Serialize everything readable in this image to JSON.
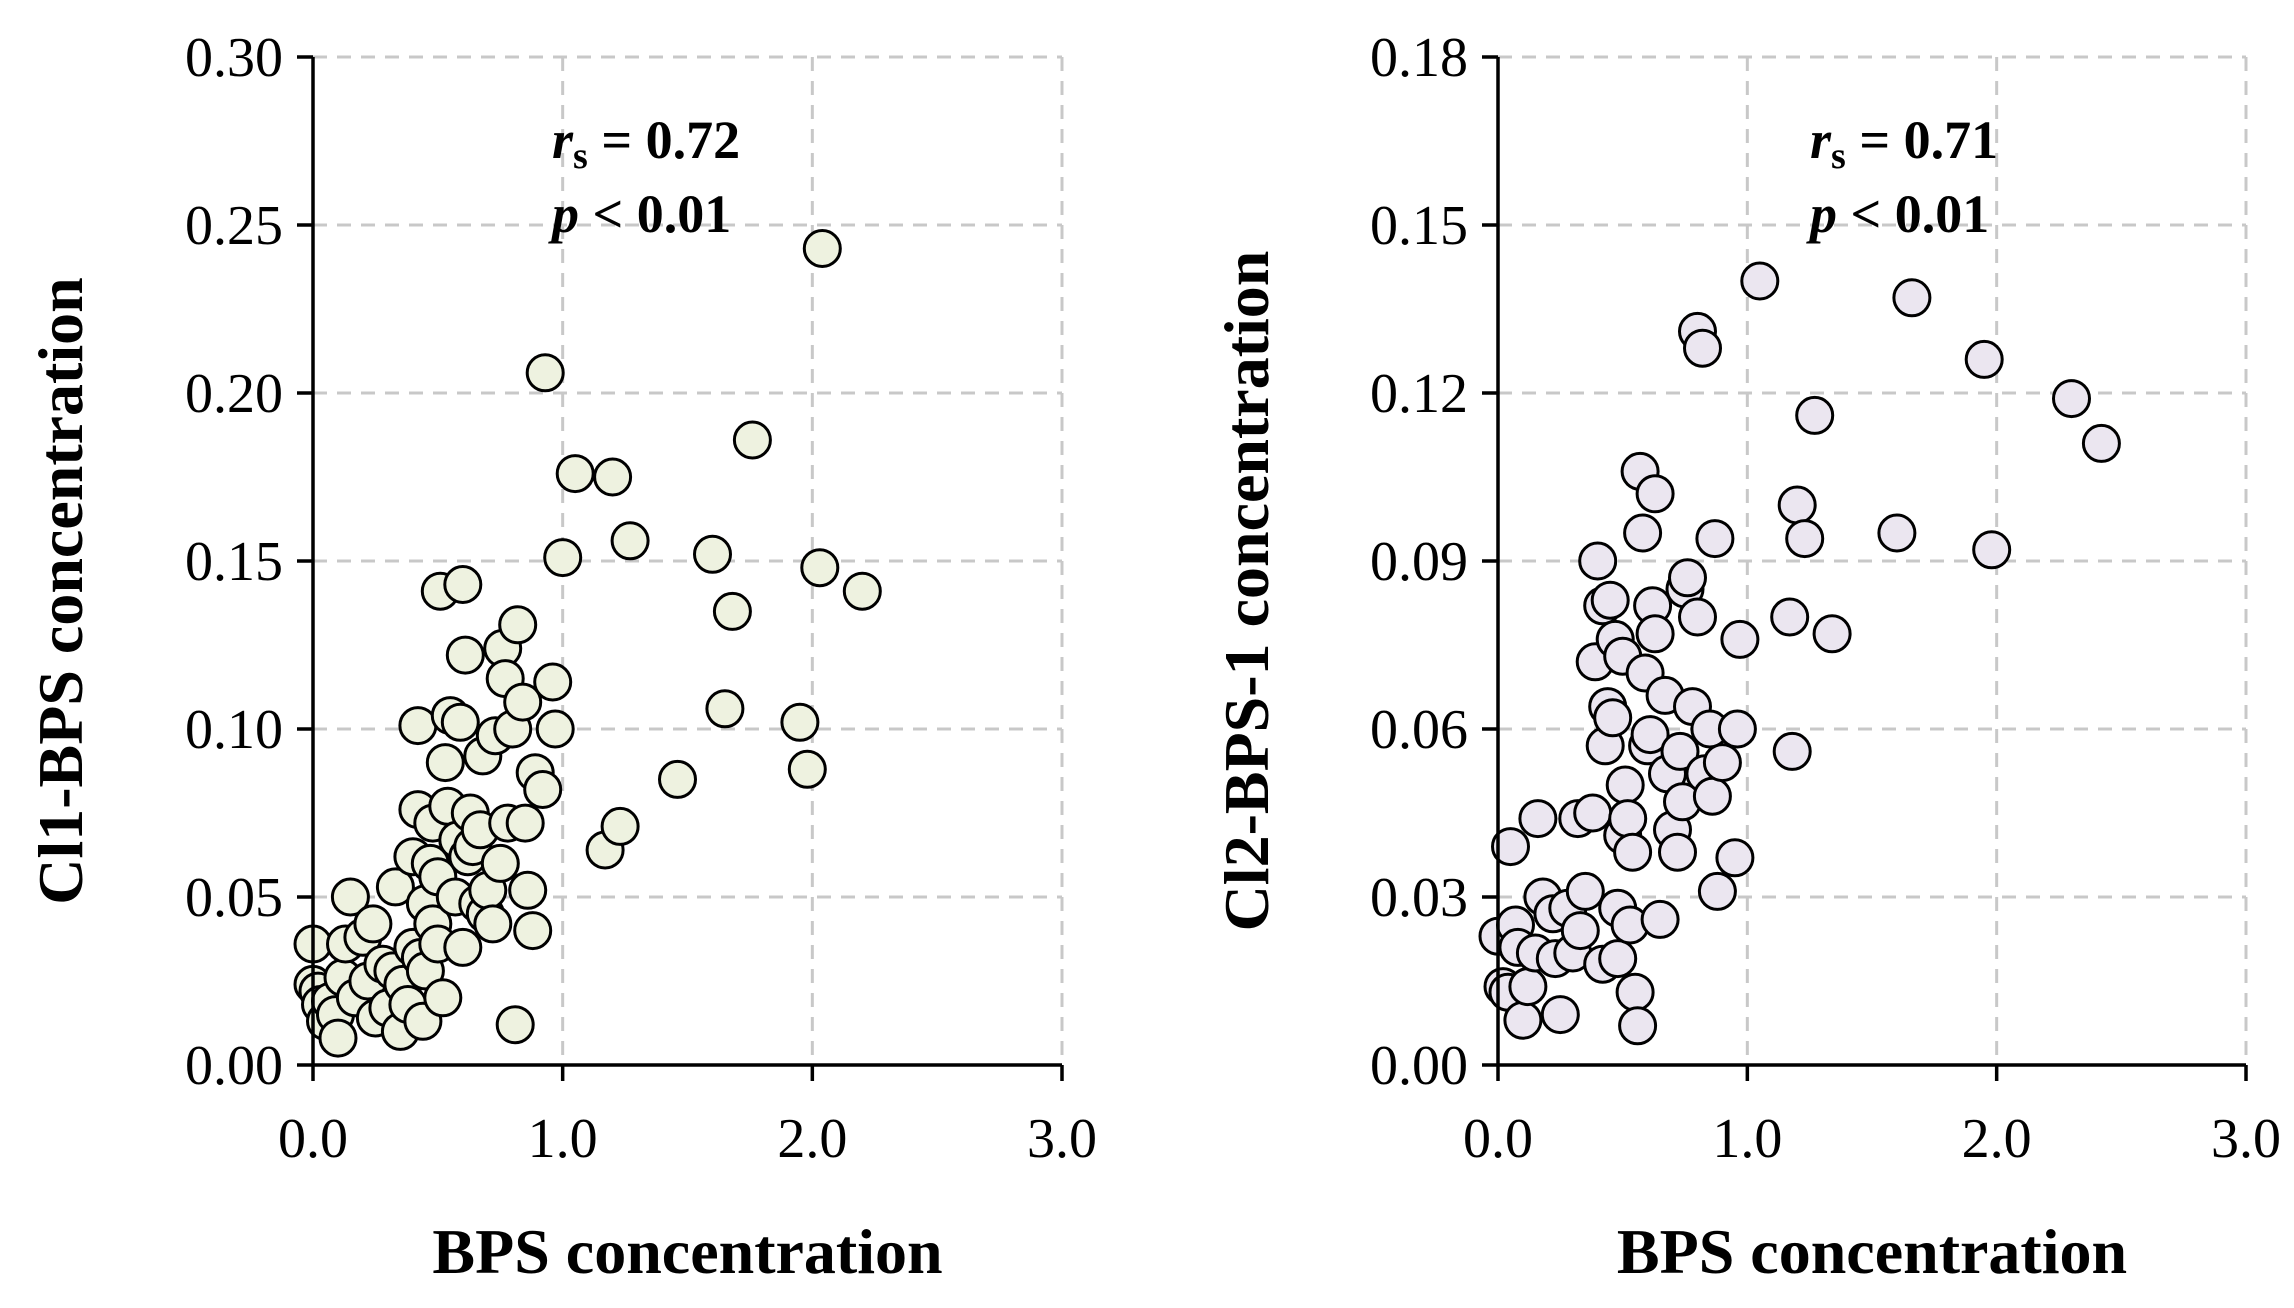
{
  "chart_data": [
    {
      "type": "scatter",
      "xlabel": "BPS concentration",
      "ylabel": "Cl1-BPS concentration",
      "xlim": [
        0,
        3.0
      ],
      "ylim": [
        0,
        0.3
      ],
      "x_ticks": [
        "0.0",
        "1.0",
        "2.0",
        "3.0"
      ],
      "y_ticks": [
        "0.00",
        "0.05",
        "0.10",
        "0.15",
        "0.20",
        "0.25",
        "0.30"
      ],
      "stat_r_label": "r",
      "stat_r_sub": "s",
      "stat_r_value": " = 0.72",
      "stat_p_label": "p",
      "stat_p_value": " < 0.01",
      "marker_color": "#eef2e0",
      "grid": true,
      "points": [
        [
          0.0,
          0.036
        ],
        [
          0.0,
          0.024
        ],
        [
          0.02,
          0.022
        ],
        [
          0.03,
          0.018
        ],
        [
          0.05,
          0.013
        ],
        [
          0.07,
          0.019
        ],
        [
          0.09,
          0.015
        ],
        [
          0.1,
          0.008
        ],
        [
          0.12,
          0.026
        ],
        [
          0.13,
          0.036
        ],
        [
          0.15,
          0.05
        ],
        [
          0.17,
          0.02
        ],
        [
          0.2,
          0.038
        ],
        [
          0.22,
          0.025
        ],
        [
          0.24,
          0.042
        ],
        [
          0.25,
          0.014
        ],
        [
          0.28,
          0.03
        ],
        [
          0.3,
          0.017
        ],
        [
          0.32,
          0.028
        ],
        [
          0.33,
          0.053
        ],
        [
          0.35,
          0.01
        ],
        [
          0.36,
          0.024
        ],
        [
          0.38,
          0.018
        ],
        [
          0.4,
          0.035
        ],
        [
          0.4,
          0.062
        ],
        [
          0.42,
          0.101
        ],
        [
          0.42,
          0.076
        ],
        [
          0.43,
          0.032
        ],
        [
          0.44,
          0.013
        ],
        [
          0.45,
          0.048
        ],
        [
          0.45,
          0.028
        ],
        [
          0.47,
          0.06
        ],
        [
          0.48,
          0.072
        ],
        [
          0.48,
          0.042
        ],
        [
          0.5,
          0.036
        ],
        [
          0.5,
          0.056
        ],
        [
          0.51,
          0.141
        ],
        [
          0.52,
          0.02
        ],
        [
          0.53,
          0.09
        ],
        [
          0.54,
          0.077
        ],
        [
          0.55,
          0.104
        ],
        [
          0.57,
          0.05
        ],
        [
          0.58,
          0.067
        ],
        [
          0.59,
          0.102
        ],
        [
          0.6,
          0.035
        ],
        [
          0.6,
          0.143
        ],
        [
          0.61,
          0.122
        ],
        [
          0.62,
          0.062
        ],
        [
          0.63,
          0.075
        ],
        [
          0.64,
          0.065
        ],
        [
          0.66,
          0.048
        ],
        [
          0.67,
          0.07
        ],
        [
          0.68,
          0.092
        ],
        [
          0.69,
          0.045
        ],
        [
          0.7,
          0.052
        ],
        [
          0.72,
          0.042
        ],
        [
          0.73,
          0.098
        ],
        [
          0.75,
          0.06
        ],
        [
          0.76,
          0.124
        ],
        [
          0.77,
          0.115
        ],
        [
          0.78,
          0.072
        ],
        [
          0.8,
          0.1
        ],
        [
          0.81,
          0.012
        ],
        [
          0.82,
          0.131
        ],
        [
          0.84,
          0.108
        ],
        [
          0.85,
          0.072
        ],
        [
          0.86,
          0.052
        ],
        [
          0.88,
          0.04
        ],
        [
          0.89,
          0.087
        ],
        [
          0.92,
          0.082
        ],
        [
          0.93,
          0.206
        ],
        [
          0.96,
          0.114
        ],
        [
          0.97,
          0.1
        ],
        [
          1.0,
          0.151
        ],
        [
          1.05,
          0.176
        ],
        [
          1.17,
          0.064
        ],
        [
          1.2,
          0.175
        ],
        [
          1.23,
          0.071
        ],
        [
          1.27,
          0.156
        ],
        [
          1.46,
          0.085
        ],
        [
          1.6,
          0.152
        ],
        [
          1.65,
          0.106
        ],
        [
          1.68,
          0.135
        ],
        [
          1.76,
          0.186
        ],
        [
          1.95,
          0.102
        ],
        [
          1.98,
          0.088
        ],
        [
          2.03,
          0.148
        ],
        [
          2.04,
          0.243
        ],
        [
          2.2,
          0.141
        ]
      ]
    },
    {
      "type": "scatter",
      "xlabel": "BPS concentration",
      "ylabel": "Cl2-BPS-1 concentration",
      "xlim": [
        0,
        3.0
      ],
      "ylim": [
        0,
        0.18
      ],
      "x_ticks": [
        "0.0",
        "1.0",
        "2.0",
        "3.0"
      ],
      "y_ticks": [
        "0.00",
        "0.03",
        "0.06",
        "0.09",
        "0.12",
        "0.15",
        "0.18"
      ],
      "stat_r_label": "r",
      "stat_r_sub": "s",
      "stat_r_value": " = 0.71",
      "stat_p_label": "p",
      "stat_p_value": " < 0.01",
      "marker_color": "#ebe6f0",
      "grid": true,
      "points": [
        [
          0.0,
          0.023
        ],
        [
          0.02,
          0.014
        ],
        [
          0.04,
          0.013
        ],
        [
          0.05,
          0.039
        ],
        [
          0.07,
          0.025
        ],
        [
          0.08,
          0.021
        ],
        [
          0.1,
          0.008
        ],
        [
          0.12,
          0.014
        ],
        [
          0.15,
          0.02
        ],
        [
          0.16,
          0.044
        ],
        [
          0.18,
          0.03
        ],
        [
          0.22,
          0.027
        ],
        [
          0.23,
          0.019
        ],
        [
          0.25,
          0.009
        ],
        [
          0.28,
          0.028
        ],
        [
          0.3,
          0.02
        ],
        [
          0.32,
          0.044
        ],
        [
          0.33,
          0.024
        ],
        [
          0.35,
          0.031
        ],
        [
          0.38,
          0.045
        ],
        [
          0.39,
          0.072
        ],
        [
          0.4,
          0.09
        ],
        [
          0.42,
          0.018
        ],
        [
          0.42,
          0.082
        ],
        [
          0.43,
          0.057
        ],
        [
          0.44,
          0.064
        ],
        [
          0.45,
          0.083
        ],
        [
          0.46,
          0.062
        ],
        [
          0.47,
          0.076
        ],
        [
          0.48,
          0.028
        ],
        [
          0.48,
          0.019
        ],
        [
          0.5,
          0.073
        ],
        [
          0.5,
          0.041
        ],
        [
          0.51,
          0.05
        ],
        [
          0.52,
          0.044
        ],
        [
          0.53,
          0.025
        ],
        [
          0.54,
          0.038
        ],
        [
          0.55,
          0.013
        ],
        [
          0.56,
          0.007
        ],
        [
          0.57,
          0.106
        ],
        [
          0.58,
          0.095
        ],
        [
          0.59,
          0.07
        ],
        [
          0.6,
          0.057
        ],
        [
          0.61,
          0.059
        ],
        [
          0.62,
          0.082
        ],
        [
          0.63,
          0.102
        ],
        [
          0.63,
          0.077
        ],
        [
          0.65,
          0.026
        ],
        [
          0.67,
          0.066
        ],
        [
          0.68,
          0.052
        ],
        [
          0.7,
          0.042
        ],
        [
          0.72,
          0.038
        ],
        [
          0.73,
          0.056
        ],
        [
          0.74,
          0.047
        ],
        [
          0.75,
          0.085
        ],
        [
          0.76,
          0.087
        ],
        [
          0.78,
          0.064
        ],
        [
          0.8,
          0.08
        ],
        [
          0.8,
          0.131
        ],
        [
          0.82,
          0.128
        ],
        [
          0.83,
          0.052
        ],
        [
          0.85,
          0.06
        ],
        [
          0.86,
          0.048
        ],
        [
          0.87,
          0.094
        ],
        [
          0.88,
          0.031
        ],
        [
          0.9,
          0.054
        ],
        [
          0.95,
          0.037
        ],
        [
          0.96,
          0.06
        ],
        [
          0.97,
          0.076
        ],
        [
          1.05,
          0.14
        ],
        [
          1.17,
          0.08
        ],
        [
          1.18,
          0.056
        ],
        [
          1.2,
          0.1
        ],
        [
          1.23,
          0.094
        ],
        [
          1.27,
          0.116
        ],
        [
          1.34,
          0.077
        ],
        [
          1.6,
          0.095
        ],
        [
          1.66,
          0.137
        ],
        [
          1.95,
          0.126
        ],
        [
          1.98,
          0.092
        ],
        [
          2.3,
          0.119
        ],
        [
          2.42,
          0.111
        ]
      ]
    }
  ]
}
